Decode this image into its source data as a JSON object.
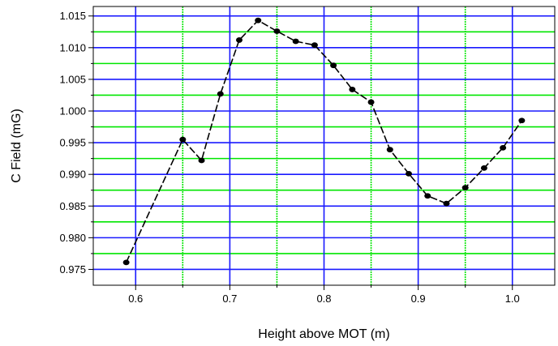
{
  "chart_data": {
    "type": "line",
    "title": "",
    "xlabel": "Height above MOT (m)",
    "ylabel": "C Field (mG)",
    "xlim": [
      0.555,
      1.045
    ],
    "ylim": [
      0.9725,
      1.0165
    ],
    "x_ticks": [
      "0.6",
      "0.7",
      "0.8",
      "0.9",
      "1.0"
    ],
    "x_tick_values": [
      0.6,
      0.7,
      0.8,
      0.9,
      1.0
    ],
    "y_ticks": [
      "0.975",
      "0.980",
      "0.985",
      "0.990",
      "0.995",
      "1.000",
      "1.005",
      "1.010",
      "1.015"
    ],
    "y_tick_values": [
      0.975,
      0.98,
      0.985,
      0.99,
      0.995,
      1.0,
      1.005,
      1.01,
      1.015
    ],
    "grid": true,
    "grid_major_color": "#1a1aff",
    "grid_minor_color": "#00e600",
    "x_minor_grid_values": [
      0.65,
      0.75,
      0.85,
      0.95
    ],
    "y_minor_grid_values": [
      0.9775,
      0.9825,
      0.9875,
      0.9925,
      0.9975,
      1.0025,
      1.0075,
      1.0125
    ],
    "series": [
      {
        "marker_color": "#000000",
        "line_style": "dashed",
        "x": [
          0.59,
          0.65,
          0.67,
          0.69,
          0.71,
          0.73,
          0.75,
          0.77,
          0.79,
          0.81,
          0.83,
          0.85,
          0.87,
          0.89,
          0.91,
          0.93,
          0.95,
          0.97,
          0.99,
          1.01
        ],
        "y": [
          0.9761,
          0.9955,
          0.9922,
          1.0027,
          1.0112,
          1.0143,
          1.0126,
          1.011,
          1.0104,
          1.0072,
          1.0034,
          1.0014,
          0.9939,
          0.9901,
          0.9866,
          0.9854,
          0.9879,
          0.991,
          0.9942,
          0.9985
        ]
      }
    ]
  }
}
